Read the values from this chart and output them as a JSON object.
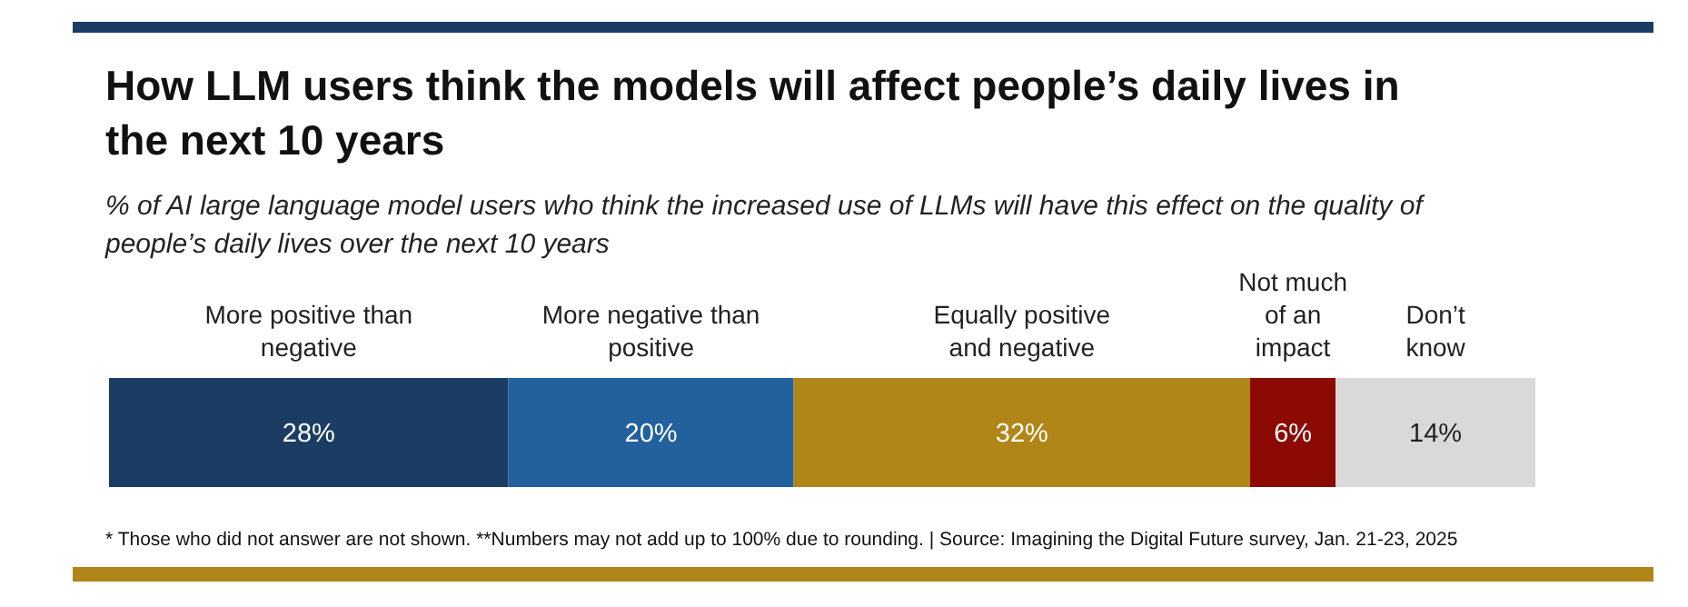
{
  "chart_data": {
    "type": "bar",
    "orientation": "horizontal",
    "stacked": true,
    "title": "How LLM users think the models will affect people’s daily lives in the next 10 years",
    "subtitle": "% of AI large language model users who think the increased use of LLMs will have this effect on the quality of people’s daily lives over the next 10 years",
    "categories": [
      null
    ],
    "series": [
      {
        "name": "More positive than negative",
        "color": "#1b3d64",
        "values": [
          28
        ],
        "value_labels": [
          "28%"
        ]
      },
      {
        "name": "More negative than positive",
        "color": "#22609e",
        "values": [
          20
        ],
        "value_labels": [
          "20%"
        ]
      },
      {
        "name": "Equally positive and negative",
        "color": "#b08618",
        "values": [
          32
        ],
        "value_labels": [
          "32%"
        ]
      },
      {
        "name": "Not much of an impact",
        "color": "#8b0a03",
        "values": [
          6
        ],
        "value_labels": [
          "6%"
        ]
      },
      {
        "name": "Don’t know",
        "color": "#d9d9d9",
        "values": [
          14
        ],
        "value_labels": [
          "14%"
        ]
      }
    ],
    "legend": "top",
    "annotations": [
      "* Those who did not answer are not shown. **Numbers may not add up to 100% due to rounding. | Source: Imagining the Digital Future survey, Jan. 21-23, 2025"
    ]
  }
}
